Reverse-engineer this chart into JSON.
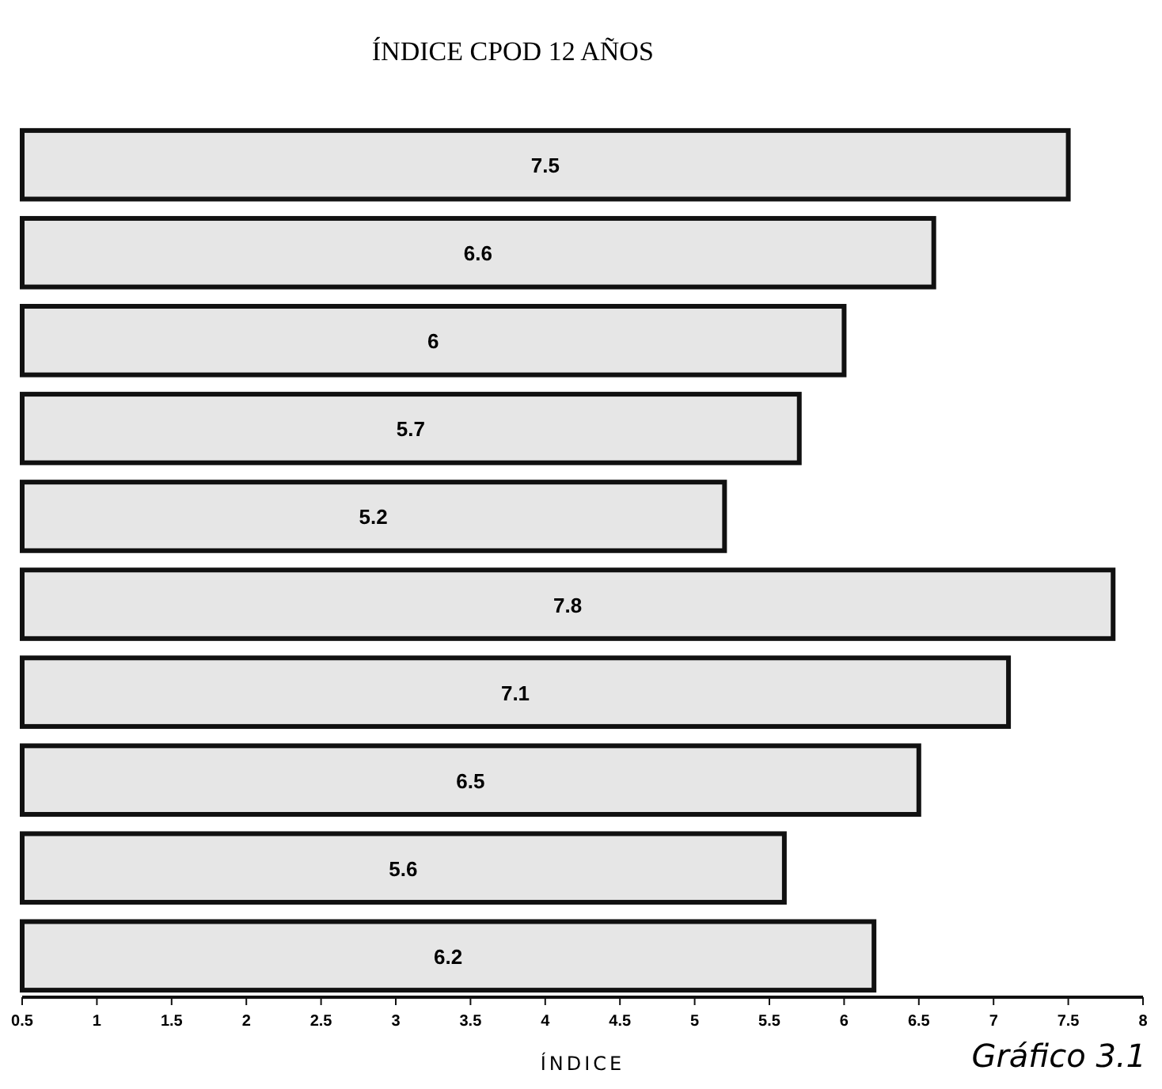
{
  "chart_data": {
    "type": "bar",
    "orientation": "horizontal",
    "title": "ÍNDICE CPOD 12 AÑOS",
    "xlabel": "ÍNDICE",
    "annotations": [
      "Gráfico 3.1"
    ],
    "categories": [
      null,
      null,
      null,
      null,
      null,
      null,
      null,
      null,
      null,
      null
    ],
    "values": [
      7.5,
      6.6,
      6,
      5.7,
      5.2,
      7.8,
      7.1,
      6.5,
      5.6,
      6.2
    ],
    "color": "#e6e6e6",
    "data_labels": true,
    "grid": false,
    "tick_labels": "x",
    "xlim": [
      0.5,
      8
    ],
    "xticks": [
      0.5,
      1,
      1.5,
      2,
      2.5,
      3,
      3.5,
      4,
      4.5,
      5,
      5.5,
      6,
      6.5,
      7,
      7.5,
      8
    ]
  }
}
